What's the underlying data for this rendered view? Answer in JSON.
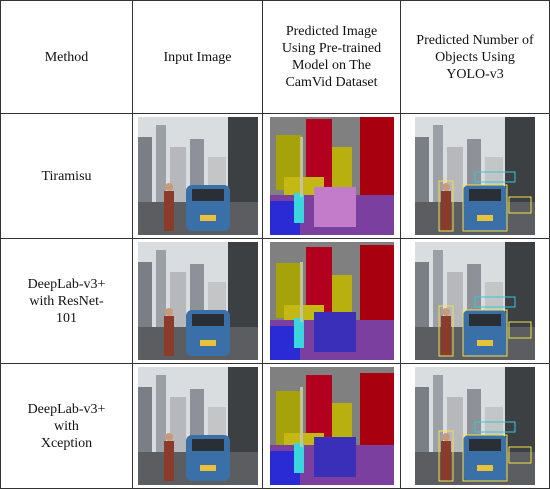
{
  "table": {
    "header": [
      "Method",
      "Input Image",
      "Predicted Image Using Pre-trained Model on The CamVid Dataset",
      "Predicted Number of Objects Using YOLO-v3"
    ],
    "rows": [
      [
        "Tiramisu"
      ],
      [
        "DeepLab-v3+ with ResNet-101"
      ],
      [
        "DeepLab-v3+ with Xception"
      ]
    ]
  }
}
